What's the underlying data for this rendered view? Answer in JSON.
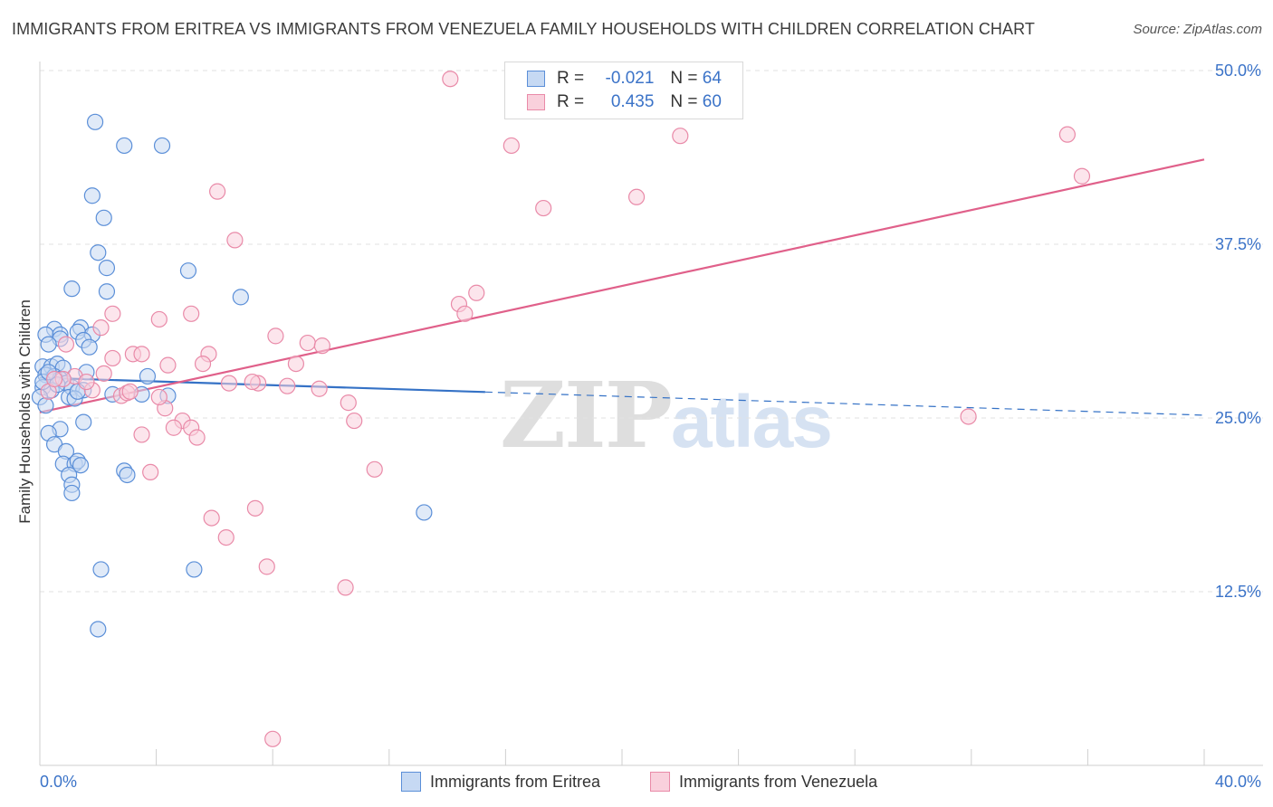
{
  "title": "IMMIGRANTS FROM ERITREA VS IMMIGRANTS FROM VENEZUELA FAMILY HOUSEHOLDS WITH CHILDREN CORRELATION CHART",
  "source": "Source: ZipAtlas.com",
  "watermark": {
    "zip": "ZIP",
    "atlas": "atlas"
  },
  "legend": {
    "r_label": "R =",
    "n_label": "N =",
    "series": [
      {
        "name": "Immigrants from Eritrea",
        "r": "-0.021",
        "n": "64"
      },
      {
        "name": "Immigrants from Venezuela",
        "r": "0.435",
        "n": "60"
      }
    ]
  },
  "colors": {
    "eritrea_fill": "#c6d9f3",
    "eritrea_stroke": "#5b8fd8",
    "eritrea_line": "#3572c6",
    "venezuela_fill": "#f9d0dc",
    "venezuela_stroke": "#e98aa8",
    "venezuela_line": "#e0608a",
    "axis_label": "#3b73c8",
    "grid": "#e2e2e2"
  },
  "chart_data": {
    "type": "scatter",
    "title": "IMMIGRANTS FROM ERITREA VS IMMIGRANTS FROM VENEZUELA FAMILY HOUSEHOLDS WITH CHILDREN CORRELATION CHART",
    "xlabel": "",
    "ylabel": "Family Households with Children",
    "xlim": [
      0,
      40
    ],
    "ylim": [
      0,
      50
    ],
    "x_tick_labels": [
      "0.0%",
      "40.0%"
    ],
    "y_ticks": [
      12.5,
      25.0,
      37.5,
      50.0
    ],
    "y_tick_labels": [
      "12.5%",
      "25.0%",
      "37.5%",
      "50.0%"
    ],
    "series": [
      {
        "name": "Immigrants from Eritrea",
        "r": -0.021,
        "n": 64,
        "trend": {
          "x0": 0,
          "y0": 27.9,
          "x1": 40,
          "y1": 25.2,
          "solid_until_x": 15.3
        },
        "points": [
          [
            1.9,
            46.3
          ],
          [
            2.9,
            44.6
          ],
          [
            4.2,
            44.6
          ],
          [
            1.8,
            41.0
          ],
          [
            2.2,
            39.4
          ],
          [
            2.0,
            36.9
          ],
          [
            2.3,
            35.8
          ],
          [
            5.1,
            35.6
          ],
          [
            1.1,
            34.3
          ],
          [
            2.3,
            34.1
          ],
          [
            6.9,
            33.7
          ],
          [
            0.5,
            31.4
          ],
          [
            1.4,
            31.5
          ],
          [
            0.2,
            31.0
          ],
          [
            0.7,
            31.0
          ],
          [
            1.3,
            31.2
          ],
          [
            1.8,
            31.0
          ],
          [
            0.7,
            30.7
          ],
          [
            1.5,
            30.6
          ],
          [
            1.7,
            30.1
          ],
          [
            0.3,
            30.3
          ],
          [
            0.1,
            28.7
          ],
          [
            0.4,
            28.7
          ],
          [
            0.6,
            28.9
          ],
          [
            0.8,
            28.6
          ],
          [
            1.6,
            28.3
          ],
          [
            3.7,
            28.0
          ],
          [
            0.2,
            28.1
          ],
          [
            0.5,
            28.0
          ],
          [
            0.7,
            27.8
          ],
          [
            0.9,
            27.5
          ],
          [
            0.1,
            27.2
          ],
          [
            0.4,
            27.0
          ],
          [
            1.1,
            27.2
          ],
          [
            1.5,
            27.0
          ],
          [
            2.5,
            26.7
          ],
          [
            3.5,
            26.7
          ],
          [
            4.4,
            26.6
          ],
          [
            0.0,
            26.5
          ],
          [
            1.0,
            26.5
          ],
          [
            1.2,
            26.4
          ],
          [
            0.2,
            25.9
          ],
          [
            1.5,
            24.7
          ],
          [
            0.7,
            24.2
          ],
          [
            0.3,
            23.9
          ],
          [
            0.5,
            23.1
          ],
          [
            0.9,
            22.6
          ],
          [
            0.8,
            21.7
          ],
          [
            1.2,
            21.7
          ],
          [
            1.3,
            21.9
          ],
          [
            1.4,
            21.6
          ],
          [
            2.9,
            21.2
          ],
          [
            3.0,
            20.9
          ],
          [
            1.0,
            20.9
          ],
          [
            1.1,
            20.2
          ],
          [
            1.1,
            19.6
          ],
          [
            13.2,
            18.2
          ],
          [
            2.1,
            14.1
          ],
          [
            5.3,
            14.1
          ],
          [
            2.0,
            9.8
          ],
          [
            0.1,
            27.6
          ],
          [
            0.6,
            27.4
          ],
          [
            1.3,
            26.9
          ],
          [
            0.3,
            28.3
          ]
        ]
      },
      {
        "name": "Immigrants from Venezuela",
        "r": 0.435,
        "n": 60,
        "trend": {
          "x0": 0,
          "y0": 25.4,
          "x1": 40,
          "y1": 43.6
        },
        "points": [
          [
            14.1,
            49.4
          ],
          [
            16.2,
            44.6
          ],
          [
            22.0,
            45.3
          ],
          [
            35.3,
            45.4
          ],
          [
            35.8,
            42.4
          ],
          [
            6.1,
            41.3
          ],
          [
            20.5,
            40.9
          ],
          [
            17.3,
            40.1
          ],
          [
            6.7,
            37.8
          ],
          [
            15.0,
            34.0
          ],
          [
            14.4,
            33.2
          ],
          [
            14.6,
            32.5
          ],
          [
            2.5,
            32.5
          ],
          [
            5.2,
            32.5
          ],
          [
            4.1,
            32.1
          ],
          [
            2.1,
            31.5
          ],
          [
            8.1,
            30.9
          ],
          [
            9.2,
            30.4
          ],
          [
            9.7,
            30.2
          ],
          [
            0.9,
            30.3
          ],
          [
            3.2,
            29.6
          ],
          [
            3.5,
            29.6
          ],
          [
            5.8,
            29.6
          ],
          [
            2.5,
            29.3
          ],
          [
            8.8,
            28.9
          ],
          [
            5.6,
            28.9
          ],
          [
            4.4,
            28.8
          ],
          [
            2.2,
            28.2
          ],
          [
            1.2,
            28.0
          ],
          [
            0.8,
            27.8
          ],
          [
            6.5,
            27.5
          ],
          [
            7.5,
            27.5
          ],
          [
            8.5,
            27.3
          ],
          [
            9.6,
            27.1
          ],
          [
            1.8,
            27.0
          ],
          [
            2.8,
            26.6
          ],
          [
            3.0,
            26.8
          ],
          [
            10.6,
            26.1
          ],
          [
            4.3,
            25.7
          ],
          [
            10.8,
            24.8
          ],
          [
            4.9,
            24.8
          ],
          [
            5.2,
            24.3
          ],
          [
            4.6,
            24.3
          ],
          [
            3.5,
            23.8
          ],
          [
            5.4,
            23.6
          ],
          [
            31.9,
            25.1
          ],
          [
            3.8,
            21.1
          ],
          [
            11.5,
            21.3
          ],
          [
            7.4,
            18.5
          ],
          [
            5.9,
            17.8
          ],
          [
            6.4,
            16.4
          ],
          [
            7.8,
            14.3
          ],
          [
            10.5,
            12.8
          ],
          [
            8.0,
            1.9
          ],
          [
            0.3,
            26.9
          ],
          [
            0.5,
            27.8
          ],
          [
            1.6,
            27.6
          ],
          [
            3.1,
            26.9
          ],
          [
            7.3,
            27.6
          ],
          [
            4.1,
            26.5
          ]
        ]
      }
    ]
  }
}
